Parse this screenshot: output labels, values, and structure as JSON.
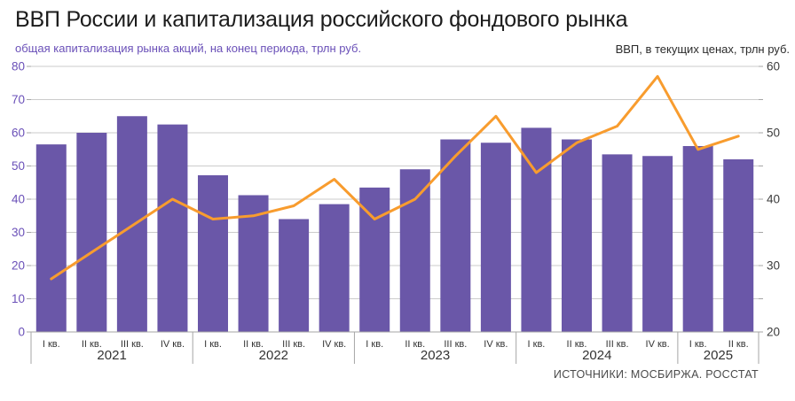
{
  "header": {
    "title": "ВВП России и капитализация российского фондового рынка",
    "subtitle_left": "общая капитализация рынка акций, на конец периода, трлн руб.",
    "subtitle_right": "ВВП, в текущих ценах, трлн руб."
  },
  "footer": {
    "sources": "ИСТОЧНИКИ: МОСБИРЖА. РОССТАТ"
  },
  "colors": {
    "bar": "#6a57a8",
    "line": "#f89c2e",
    "left_axis_text": "#6a50b8",
    "right_axis_text": "#3c3c3c",
    "category_text": "#333333",
    "gridline": "#cbcbcb",
    "axis_gray": "#a6a6a6"
  },
  "chart_data": {
    "type": "bar+line combo",
    "title": "ВВП России и капитализация российского фондового рынка",
    "left_axis": {
      "label": "общая капитализация рынка акций, на конец периода, трлн руб.",
      "min": 0,
      "max": 80,
      "tick_step": 10,
      "ticks": [
        0,
        10,
        20,
        30,
        40,
        50,
        60,
        70,
        80
      ]
    },
    "right_axis": {
      "label": "ВВП, в текущих ценах, трлн руб.",
      "min": 20,
      "max": 60,
      "tick_step": 10,
      "ticks": [
        20,
        30,
        40,
        50,
        60
      ]
    },
    "grid": "horizontal lines every 10 left-axis units",
    "groups": [
      {
        "year": "2021",
        "quarters": [
          "I кв.",
          "II кв.",
          "III кв.",
          "IV кв."
        ]
      },
      {
        "year": "2022",
        "quarters": [
          "I кв.",
          "II кв.",
          "III кв.",
          "IV кв."
        ]
      },
      {
        "year": "2023",
        "quarters": [
          "I кв.",
          "II кв.",
          "III кв.",
          "IV кв."
        ]
      },
      {
        "year": "2024",
        "quarters": [
          "I кв.",
          "II кв.",
          "III кв.",
          "IV кв."
        ]
      },
      {
        "year": "2025",
        "quarters": [
          "I кв.",
          "II кв."
        ]
      }
    ],
    "series": [
      {
        "name": "Общая капитализация рынка акций, трлн руб. (левая ось)",
        "type": "bar",
        "axis": "left",
        "values": [
          56.5,
          60,
          65,
          62.5,
          47.2,
          41.2,
          34,
          38.5,
          43.5,
          49,
          58,
          57,
          61.5,
          58,
          53.5,
          53,
          56,
          52
        ]
      },
      {
        "name": "ВВП в текущих ценах, трлн руб. (правая ось)",
        "type": "line",
        "axis": "right",
        "values": [
          28,
          32,
          36,
          40,
          37,
          37.5,
          39,
          43,
          37,
          40,
          46.5,
          52.5,
          44,
          48.5,
          51,
          58.5,
          47.5,
          49.5
        ]
      }
    ]
  }
}
